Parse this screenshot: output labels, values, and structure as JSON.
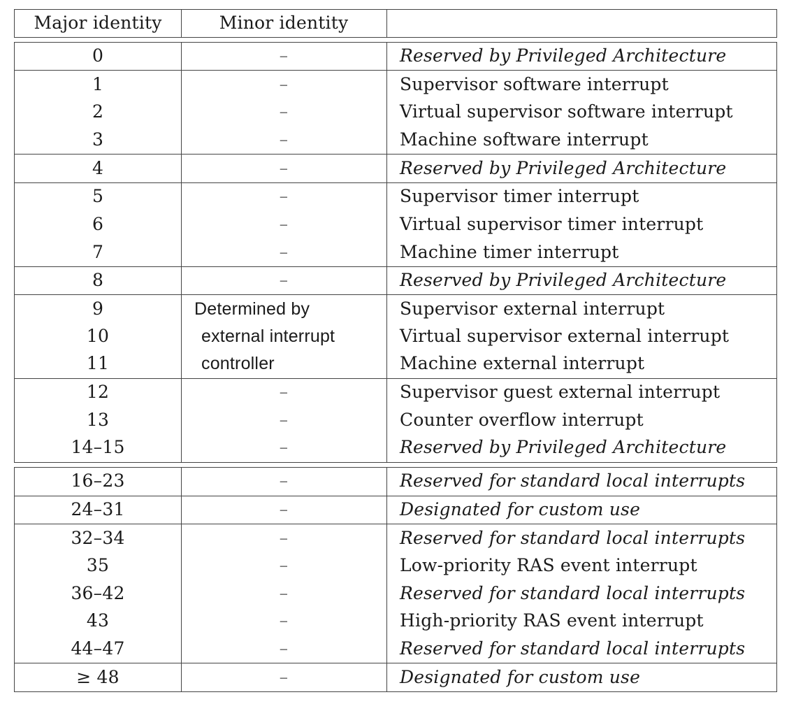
{
  "header": {
    "major": "Major identity",
    "minor": "Minor identity",
    "description": ""
  },
  "rows": [
    {
      "major": "0",
      "minor": "–",
      "description": "Reserved by Privileged Architecture"
    },
    {
      "major": "1",
      "minor": "–",
      "description": "Supervisor software interrupt"
    },
    {
      "major": "2",
      "minor": "–",
      "description": "Virtual supervisor software interrupt"
    },
    {
      "major": "3",
      "minor": "–",
      "description": "Machine software interrupt"
    },
    {
      "major": "4",
      "minor": "–",
      "description": "Reserved by Privileged Architecture"
    },
    {
      "major": "5",
      "minor": "–",
      "description": "Supervisor timer interrupt"
    },
    {
      "major": "6",
      "minor": "–",
      "description": "Virtual supervisor timer interrupt"
    },
    {
      "major": "7",
      "minor": "–",
      "description": "Machine timer interrupt"
    },
    {
      "major": "8",
      "minor": "–",
      "description": "Reserved by Privileged Architecture"
    },
    {
      "major": "9",
      "minor": "Determined by",
      "description": "Supervisor external interrupt"
    },
    {
      "major": "10",
      "minor": "external interrupt",
      "description": "Virtual supervisor external interrupt"
    },
    {
      "major": "11",
      "minor": "controller",
      "description": "Machine external interrupt"
    },
    {
      "major": "12",
      "minor": "–",
      "description": "Supervisor guest external interrupt"
    },
    {
      "major": "13",
      "minor": "–",
      "description": "Counter overflow interrupt"
    },
    {
      "major": "14–15",
      "minor": "–",
      "description": "Reserved by Privileged Architecture"
    },
    {
      "major": "16–23",
      "minor": "–",
      "description": "Reserved for standard local interrupts"
    },
    {
      "major": "24–31",
      "minor": "–",
      "description": "Designated for custom use"
    },
    {
      "major": "32–34",
      "minor": "–",
      "description": "Reserved for standard local interrupts"
    },
    {
      "major": "35",
      "minor": "–",
      "description": "Low-priority RAS event interrupt"
    },
    {
      "major": "36–42",
      "minor": "–",
      "description": "Reserved for standard local interrupts"
    },
    {
      "major": "43",
      "minor": "–",
      "description": "High-priority RAS event interrupt"
    },
    {
      "major": "44–47",
      "minor": "–",
      "description": "Reserved for standard local interrupts"
    },
    {
      "major": "≥ 48",
      "minor": "–",
      "description": "Designated for custom use"
    }
  ]
}
